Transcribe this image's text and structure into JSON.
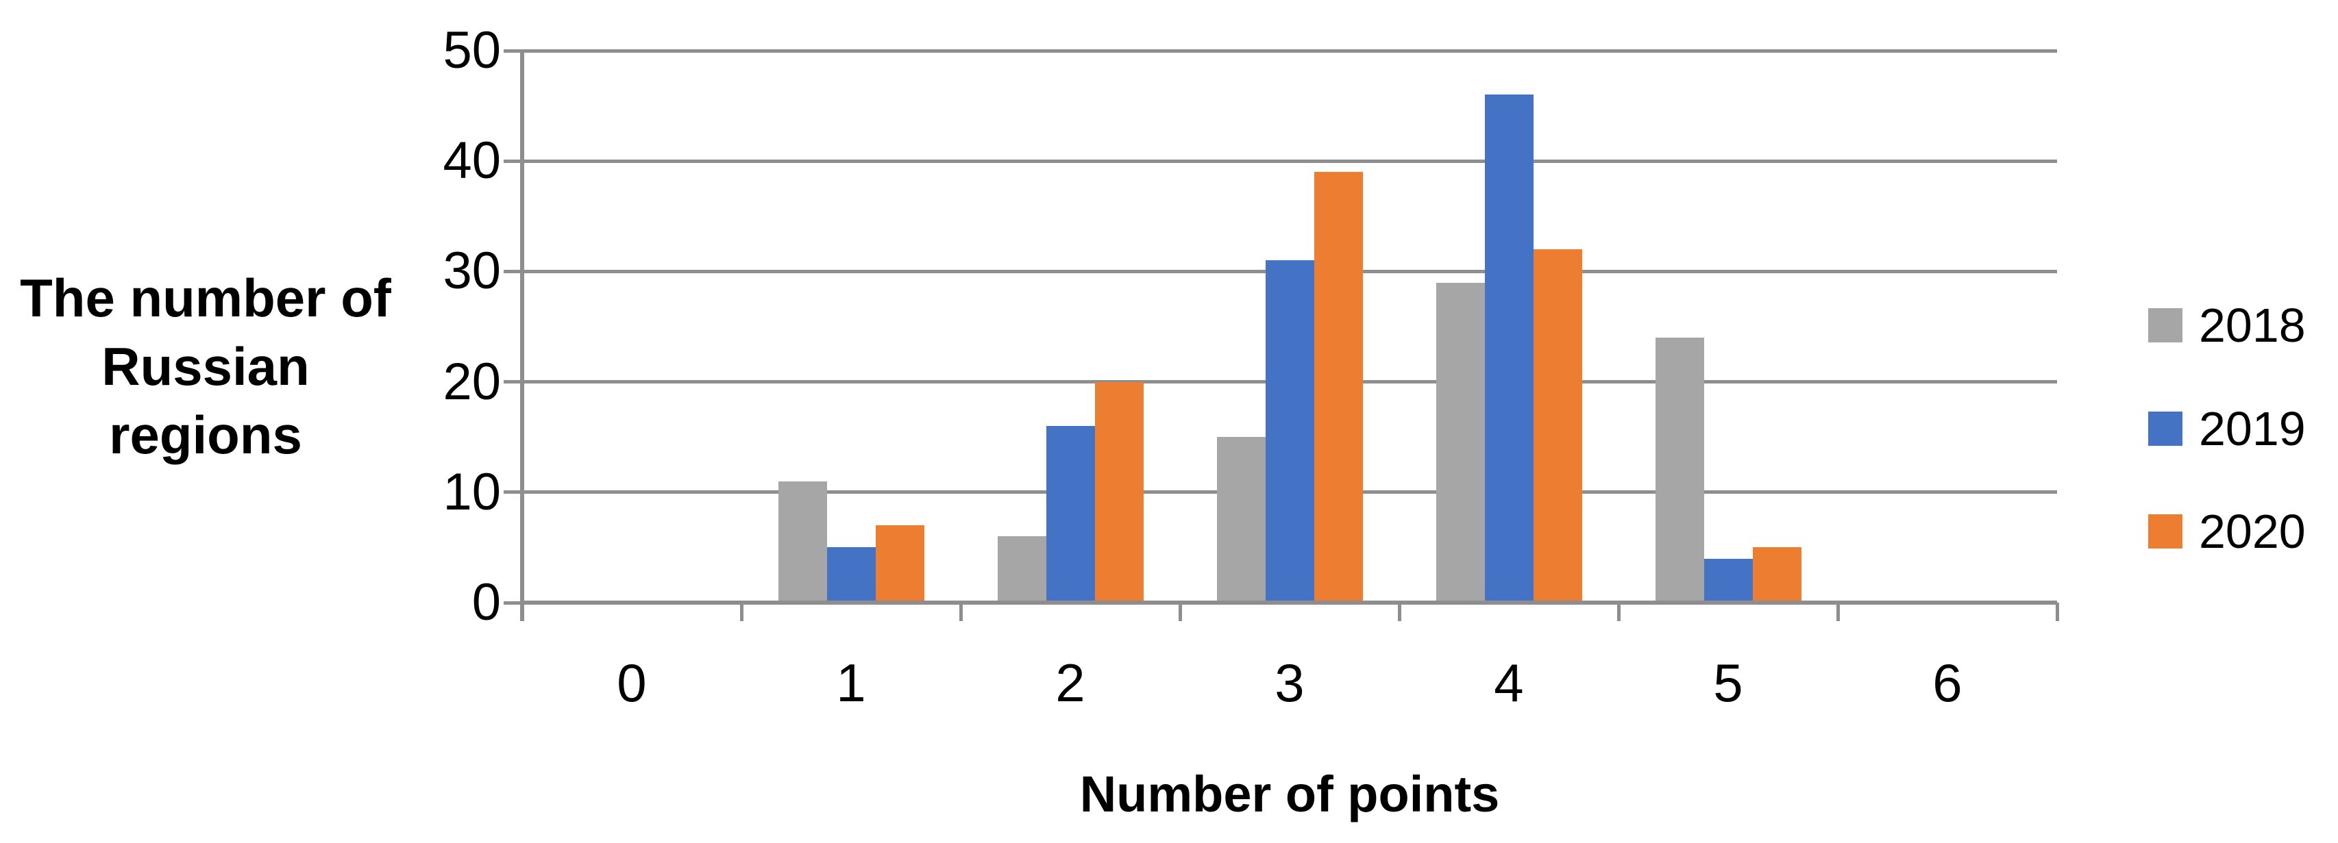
{
  "chart_data": {
    "type": "bar",
    "title": "",
    "categories": [
      "0",
      "1",
      "2",
      "3",
      "4",
      "5",
      "6"
    ],
    "series": [
      {
        "name": "2018",
        "color": "#A6A6A6",
        "values": [
          0,
          11,
          6,
          15,
          29,
          24,
          0
        ]
      },
      {
        "name": "2019",
        "color": "#4472C4",
        "values": [
          0,
          5,
          16,
          31,
          46,
          4,
          0
        ]
      },
      {
        "name": "2020",
        "color": "#ED7D31",
        "values": [
          0,
          7,
          20,
          39,
          32,
          5,
          0
        ]
      }
    ],
    "xlabel": "Number of points",
    "ylabel": "The number of Russian regions",
    "ylabel_lines": [
      "The number of",
      "Russian regions"
    ],
    "yticks": [
      "0",
      "10",
      "20",
      "30",
      "40",
      "50"
    ],
    "ylim": [
      0,
      50
    ],
    "ytick_step": 10,
    "grid": "horizontal-only",
    "legend_position": "right",
    "legend_entries": [
      "2018",
      "2019",
      "2020"
    ]
  },
  "colors": {
    "grid": "#8E8E8E",
    "axis": "#8E8E8E",
    "text": "#000000",
    "background": "#FFFFFF"
  }
}
